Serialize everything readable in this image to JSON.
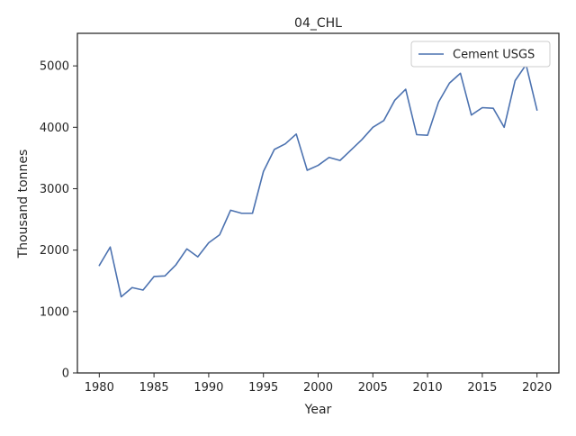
{
  "chart_data": {
    "type": "line",
    "title": "04_CHL",
    "xlabel": "Year",
    "ylabel": "Thousand tonnes",
    "xlim": [
      1978,
      2022
    ],
    "ylim": [
      0,
      5530
    ],
    "xticks": [
      "1980",
      "1985",
      "1990",
      "1995",
      "2000",
      "2005",
      "2010",
      "2015",
      "2020"
    ],
    "yticks": [
      "0",
      "1000",
      "2000",
      "3000",
      "4000",
      "5000"
    ],
    "grid": false,
    "legend_position": "top-right",
    "series": [
      {
        "name": "Cement USGS",
        "color": "#4c72b0",
        "x": [
          1980,
          1981,
          1982,
          1983,
          1984,
          1985,
          1986,
          1987,
          1988,
          1989,
          1990,
          1991,
          1992,
          1993,
          1994,
          1995,
          1996,
          1997,
          1998,
          1999,
          2000,
          2001,
          2002,
          2003,
          2004,
          2005,
          2006,
          2007,
          2008,
          2009,
          2010,
          2011,
          2012,
          2013,
          2014,
          2015,
          2016,
          2017,
          2018,
          2019,
          2020
        ],
        "y": [
          1750,
          2050,
          1240,
          1390,
          1350,
          1570,
          1580,
          1760,
          2020,
          1890,
          2120,
          2250,
          2650,
          2600,
          2600,
          3280,
          3640,
          3730,
          3890,
          3300,
          3380,
          3510,
          3460,
          3630,
          3800,
          4000,
          4110,
          4440,
          4620,
          3880,
          3870,
          4410,
          4720,
          4880,
          4200,
          4320,
          4310,
          4000,
          4760,
          5020,
          4280
        ]
      }
    ]
  }
}
